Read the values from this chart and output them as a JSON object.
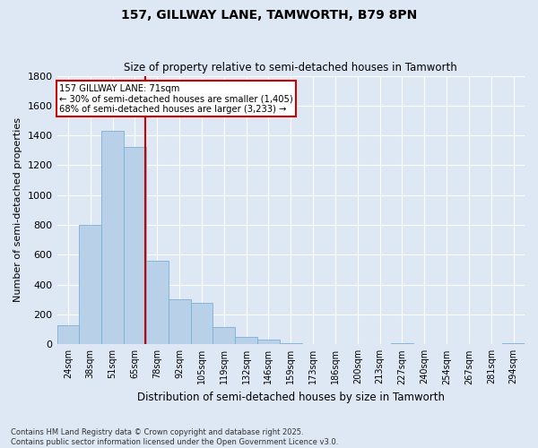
{
  "title_line1": "157, GILLWAY LANE, TAMWORTH, B79 8PN",
  "title_line2": "Size of property relative to semi-detached houses in Tamworth",
  "xlabel": "Distribution of semi-detached houses by size in Tamworth",
  "ylabel": "Number of semi-detached properties",
  "annotation_line1": "157 GILLWAY LANE: 71sqm",
  "annotation_line2": "← 30% of semi-detached houses are smaller (1,405)",
  "annotation_line3": "68% of semi-detached houses are larger (3,233) →",
  "footer_line1": "Contains HM Land Registry data © Crown copyright and database right 2025.",
  "footer_line2": "Contains public sector information licensed under the Open Government Licence v3.0.",
  "bin_labels": [
    "24sqm",
    "38sqm",
    "51sqm",
    "65sqm",
    "78sqm",
    "92sqm",
    "105sqm",
    "119sqm",
    "132sqm",
    "146sqm",
    "159sqm",
    "173sqm",
    "186sqm",
    "200sqm",
    "213sqm",
    "227sqm",
    "240sqm",
    "254sqm",
    "267sqm",
    "281sqm",
    "294sqm"
  ],
  "bar_values": [
    130,
    800,
    1430,
    1320,
    560,
    300,
    280,
    115,
    50,
    30,
    5,
    0,
    0,
    0,
    0,
    5,
    0,
    0,
    0,
    0,
    5
  ],
  "bar_color": "#b8d0e8",
  "bar_edge_color": "#7aafd4",
  "vline_color": "#cc0000",
  "vline_x": 3.45,
  "ylim": [
    0,
    1800
  ],
  "yticks": [
    0,
    200,
    400,
    600,
    800,
    1000,
    1200,
    1400,
    1600,
    1800
  ],
  "background_color": "#dde8f4",
  "grid_color": "#ffffff",
  "annotation_box_edge_color": "#cc0000",
  "annotation_box_face_color": "#ffffff"
}
